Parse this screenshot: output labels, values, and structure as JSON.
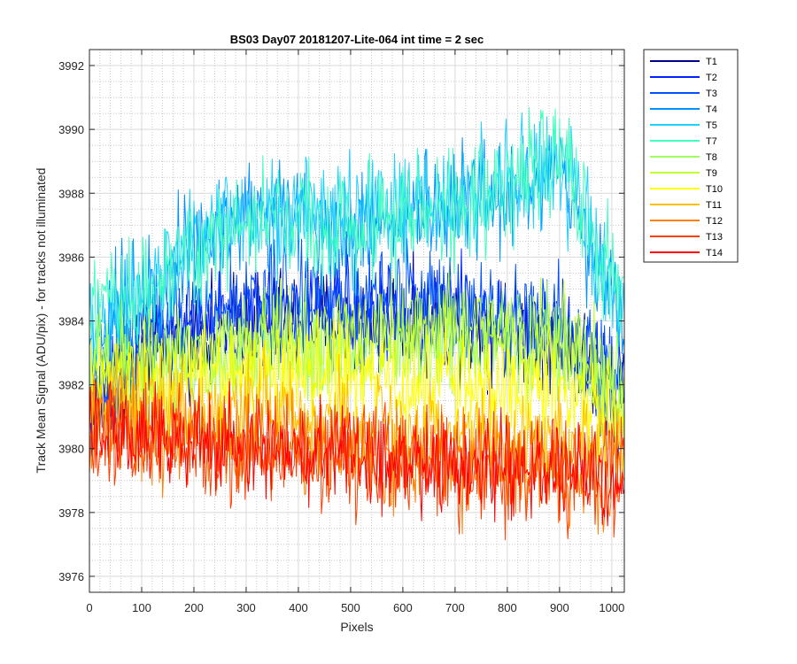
{
  "window": {
    "title": "BS03 Day07 20181207-Lite-064 int time = 2 sec"
  },
  "chart_data": {
    "type": "line",
    "title": "BS03 Day07 20181207-Lite-064 int time = 2 sec",
    "xlabel": "Pixels",
    "ylabel": "Track Mean Signal (ADU/pix) - for tracks not illuminated",
    "xlim": [
      0,
      1024
    ],
    "ylim": [
      3975.5,
      3992.5
    ],
    "xticks": [
      0,
      100,
      200,
      300,
      400,
      500,
      600,
      700,
      800,
      900,
      1000
    ],
    "yticks": [
      3976,
      3978,
      3980,
      3982,
      3984,
      3986,
      3988,
      3990,
      3992
    ],
    "grid": true,
    "minor_grid": true,
    "legend_position": "outside-right",
    "x_range_points": [
      0,
      1024
    ],
    "series": [
      {
        "name": "T1",
        "color": "#00008F",
        "trend": {
          "x": [
            0,
            100,
            300,
            500,
            700,
            900,
            1024
          ],
          "y": [
            3981.0,
            3983.0,
            3984.0,
            3984.0,
            3984.0,
            3983.5,
            3981.5
          ]
        },
        "noise": 1.4
      },
      {
        "name": "T2",
        "color": "#0020FF",
        "trend": {
          "x": [
            0,
            100,
            300,
            500,
            700,
            900,
            1024
          ],
          "y": [
            3981.2,
            3983.2,
            3984.2,
            3984.2,
            3984.2,
            3983.6,
            3981.6
          ]
        },
        "noise": 1.4
      },
      {
        "name": "T3",
        "color": "#0050FF",
        "trend": {
          "x": [
            0,
            100,
            300,
            500,
            700,
            900,
            1024
          ],
          "y": [
            3981.5,
            3983.5,
            3984.6,
            3984.8,
            3984.8,
            3984.0,
            3982.0
          ]
        },
        "noise": 1.4
      },
      {
        "name": "T4",
        "color": "#0090FF",
        "trend": {
          "x": [
            0,
            100,
            300,
            500,
            700,
            900,
            1024
          ],
          "y": [
            3983.5,
            3985.0,
            3987.5,
            3987.0,
            3987.5,
            3988.5,
            3984.0
          ]
        },
        "noise": 1.5
      },
      {
        "name": "T5",
        "color": "#20D0FF",
        "trend": {
          "x": [
            0,
            100,
            300,
            500,
            700,
            900,
            1024
          ],
          "y": [
            3983.5,
            3985.0,
            3987.5,
            3987.2,
            3987.8,
            3988.8,
            3984.2
          ]
        },
        "noise": 1.5
      },
      {
        "name": "T7",
        "color": "#40FFC0",
        "trend": {
          "x": [
            0,
            100,
            300,
            500,
            700,
            900,
            1024
          ],
          "y": [
            3984.0,
            3985.0,
            3987.2,
            3987.0,
            3987.5,
            3989.0,
            3984.5
          ]
        },
        "noise": 1.6
      },
      {
        "name": "T8",
        "color": "#A0FF60",
        "trend": {
          "x": [
            0,
            100,
            300,
            500,
            700,
            900,
            1024
          ],
          "y": [
            3982.5,
            3982.5,
            3983.0,
            3983.2,
            3983.5,
            3983.2,
            3981.5
          ]
        },
        "noise": 1.4
      },
      {
        "name": "T9",
        "color": "#C0FF30",
        "trend": {
          "x": [
            0,
            100,
            300,
            500,
            700,
            900,
            1024
          ],
          "y": [
            3982.5,
            3982.6,
            3983.2,
            3983.4,
            3983.8,
            3983.4,
            3981.6
          ]
        },
        "noise": 1.4
      },
      {
        "name": "T10",
        "color": "#FFFF00",
        "trend": {
          "x": [
            0,
            100,
            300,
            500,
            700,
            900,
            1024
          ],
          "y": [
            3982.0,
            3982.2,
            3982.5,
            3982.2,
            3982.0,
            3981.8,
            3980.8
          ]
        },
        "noise": 1.4
      },
      {
        "name": "T11",
        "color": "#FFC000",
        "trend": {
          "x": [
            0,
            100,
            300,
            500,
            700,
            900,
            1024
          ],
          "y": [
            3981.2,
            3981.2,
            3981.2,
            3980.8,
            3980.5,
            3980.2,
            3979.8
          ]
        },
        "noise": 1.4
      },
      {
        "name": "T12",
        "color": "#FF8000",
        "trend": {
          "x": [
            0,
            100,
            300,
            500,
            700,
            900,
            1024
          ],
          "y": [
            3980.5,
            3980.5,
            3980.3,
            3980.0,
            3979.6,
            3979.4,
            3979.2
          ]
        },
        "noise": 1.4
      },
      {
        "name": "T13",
        "color": "#FF4000",
        "trend": {
          "x": [
            0,
            100,
            300,
            500,
            700,
            900,
            1024
          ],
          "y": [
            3980.3,
            3980.2,
            3980.0,
            3979.8,
            3979.4,
            3979.2,
            3979.0
          ]
        },
        "noise": 1.4
      },
      {
        "name": "T14",
        "color": "#FF0000",
        "trend": {
          "x": [
            0,
            100,
            300,
            500,
            700,
            900,
            1024
          ],
          "y": [
            3980.5,
            3980.3,
            3980.1,
            3979.8,
            3979.4,
            3979.2,
            3979.0
          ]
        },
        "noise": 1.3
      }
    ]
  }
}
